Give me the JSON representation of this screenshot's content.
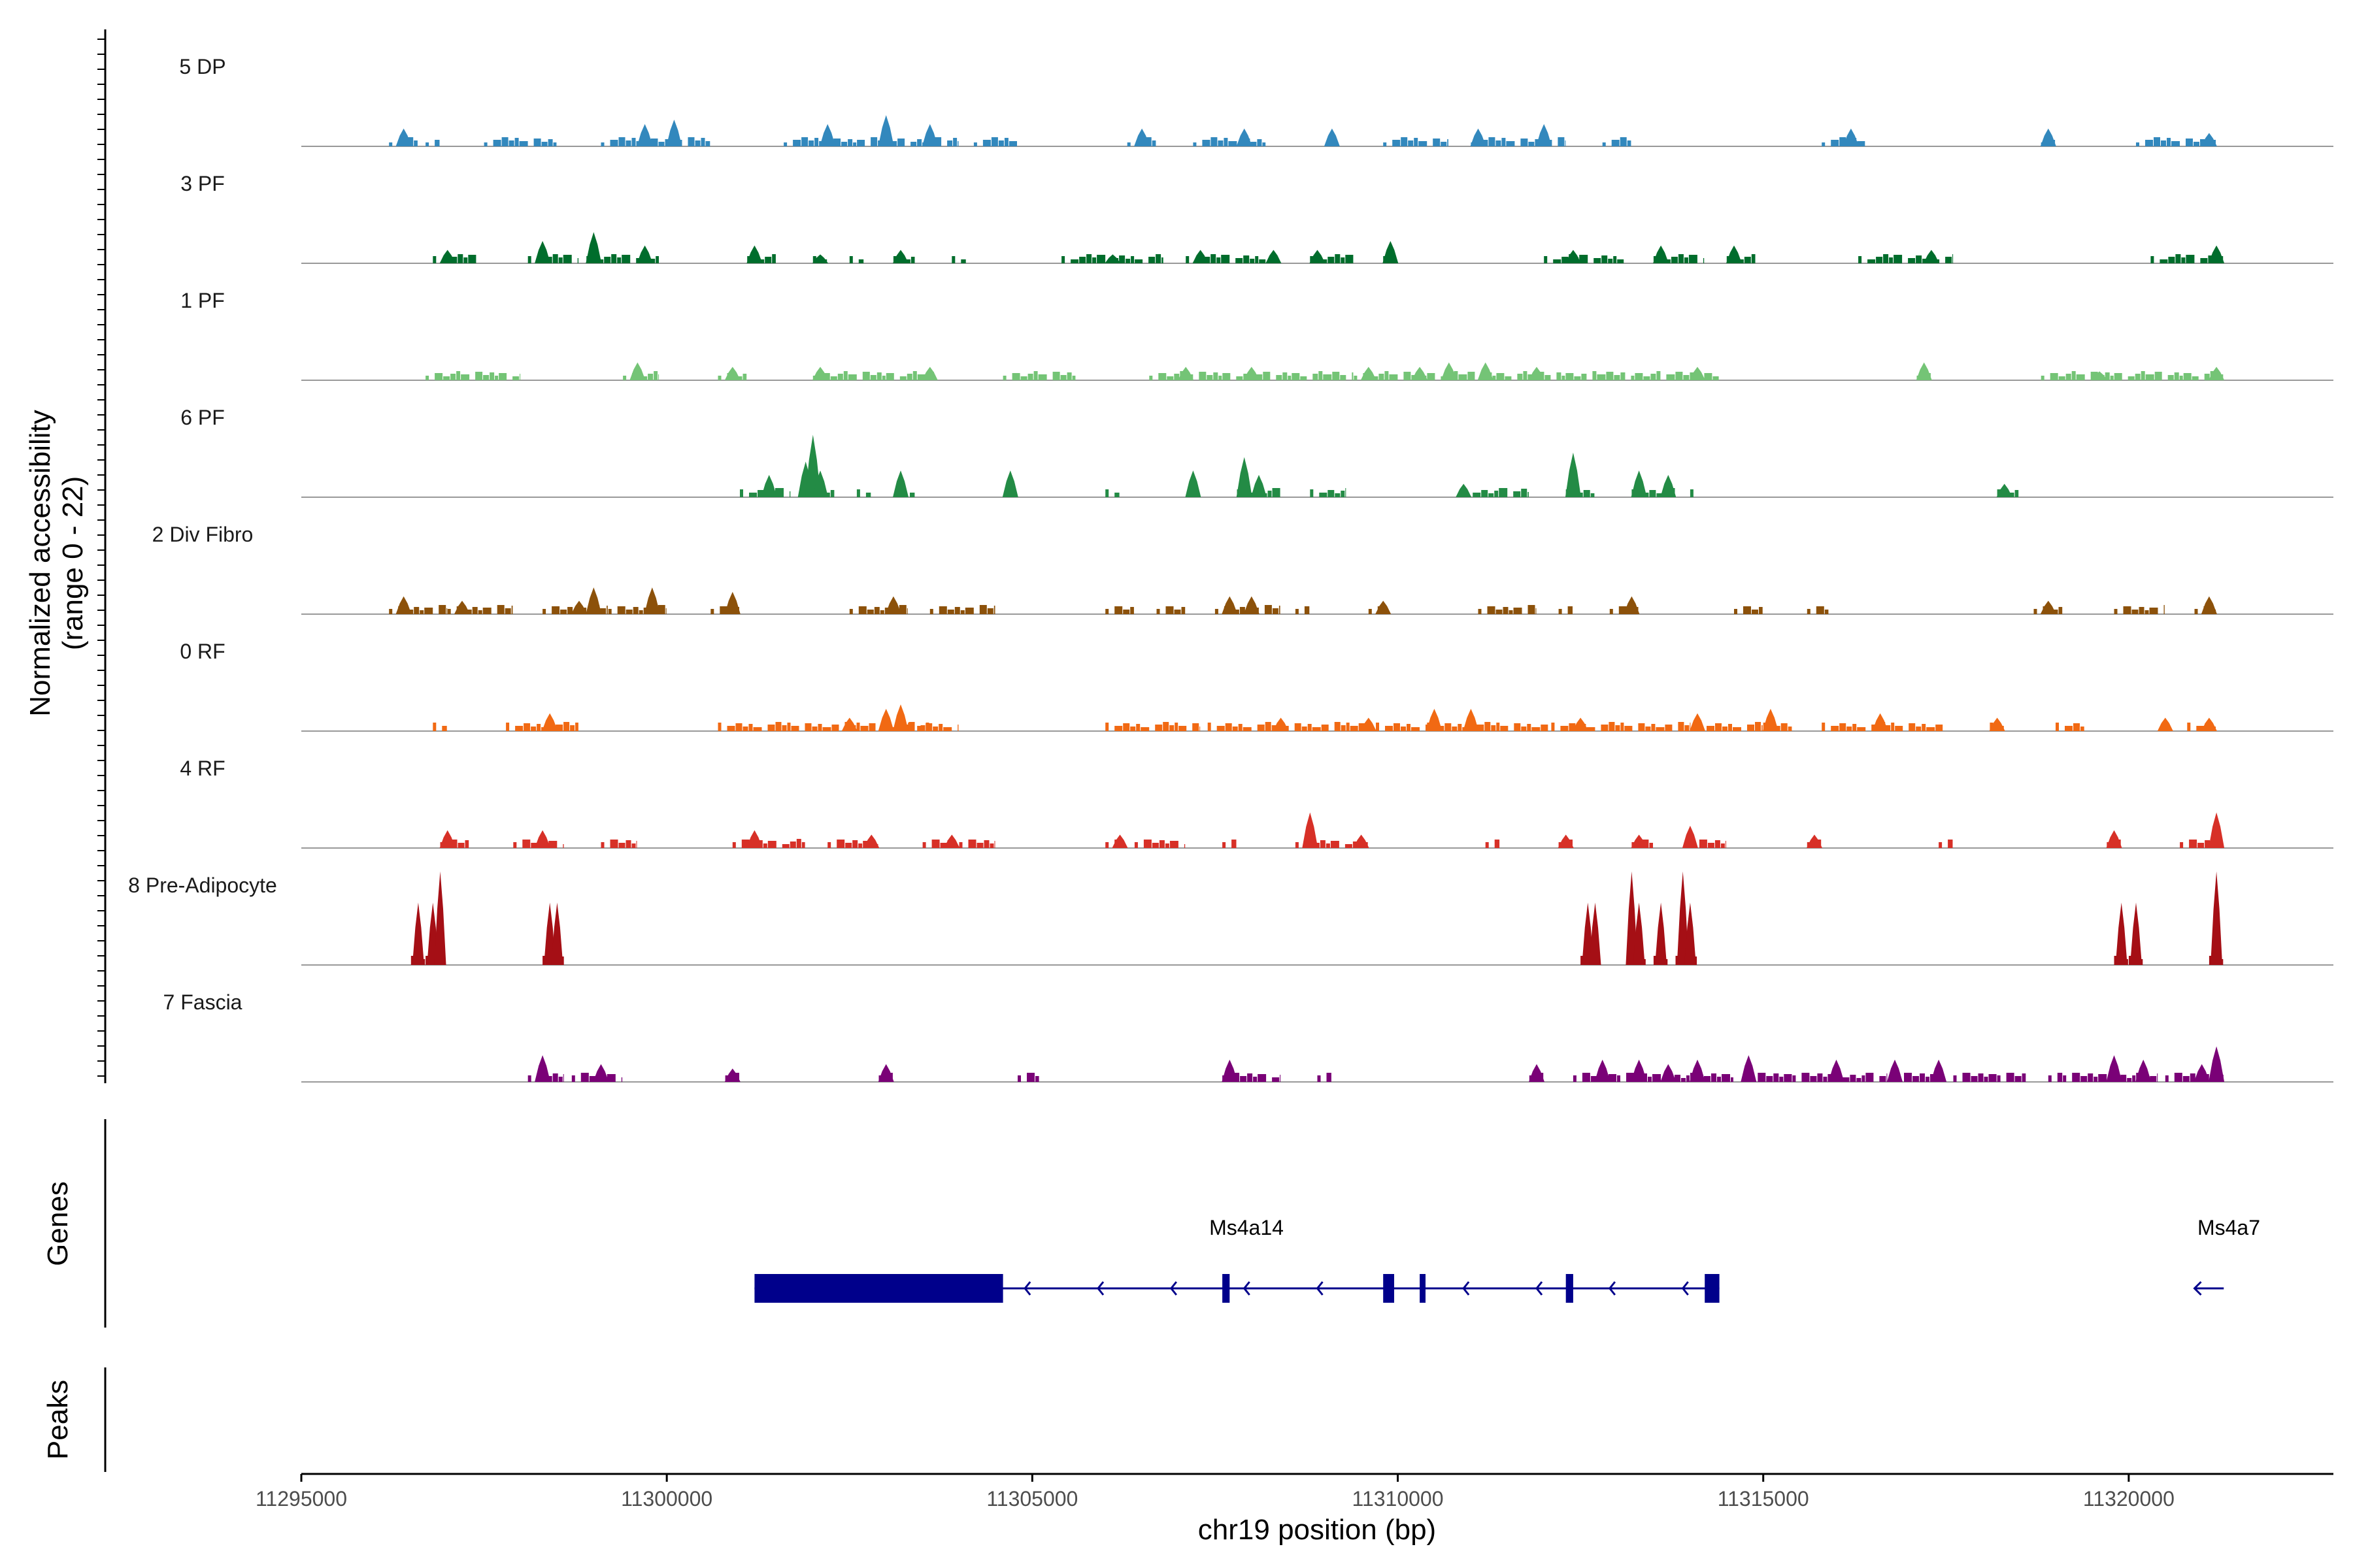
{
  "chart_data": {
    "type": "coverage-track",
    "y_axis_title_line1": "Normalized accessibility",
    "y_axis_title_line2": "(range 0 - 22)",
    "x_axis_title": "chr19 position (bp)",
    "x_range": [
      11295000,
      11322800
    ],
    "x_ticks": [
      11295000,
      11300000,
      11305000,
      11310000,
      11315000,
      11320000
    ],
    "genes_track_label": "Genes",
    "peaks_track_label": "Peaks",
    "tracks": [
      {
        "name": "5 DP",
        "color": "#3288BD",
        "ranges": [
          [
            11296200,
            11296600
          ],
          [
            11296700,
            11296900
          ],
          [
            11297500,
            11298500
          ],
          [
            11299100,
            11300600
          ],
          [
            11301600,
            11304000
          ],
          [
            11304200,
            11304800
          ],
          [
            11306300,
            11306700
          ],
          [
            11307200,
            11308200
          ],
          [
            11309100,
            11309200
          ],
          [
            11309800,
            11310700
          ],
          [
            11311000,
            11312300
          ],
          [
            11312800,
            11313200
          ],
          [
            11315800,
            11316400
          ],
          [
            11318800,
            11319000
          ],
          [
            11320100,
            11321200
          ]
        ],
        "peaks": [
          [
            11296400,
            4
          ],
          [
            11299700,
            5
          ],
          [
            11300100,
            6
          ],
          [
            11302200,
            5
          ],
          [
            11303000,
            7
          ],
          [
            11303600,
            5
          ],
          [
            11306500,
            4
          ],
          [
            11307900,
            4
          ],
          [
            11309100,
            4
          ],
          [
            11311100,
            4
          ],
          [
            11312000,
            5
          ],
          [
            11316200,
            4
          ],
          [
            11318900,
            4
          ],
          [
            11321100,
            3
          ]
        ]
      },
      {
        "name": "3 PF",
        "color": "#006D2C",
        "ranges": [
          [
            11296800,
            11297400
          ],
          [
            11298100,
            11298800
          ],
          [
            11298900,
            11299900
          ],
          [
            11301100,
            11301500
          ],
          [
            11302000,
            11302200
          ],
          [
            11302500,
            11302700
          ],
          [
            11303100,
            11303400
          ],
          [
            11303900,
            11304100
          ],
          [
            11305400,
            11306800
          ],
          [
            11307100,
            11308200
          ],
          [
            11308800,
            11309400
          ],
          [
            11309800,
            11310000
          ],
          [
            11312000,
            11313100
          ],
          [
            11313500,
            11314200
          ],
          [
            11314500,
            11314900
          ],
          [
            11316300,
            11317600
          ],
          [
            11320300,
            11321300
          ]
        ],
        "peaks": [
          [
            11297000,
            3
          ],
          [
            11298300,
            5
          ],
          [
            11299000,
            7
          ],
          [
            11299700,
            4
          ],
          [
            11301200,
            4
          ],
          [
            11302100,
            2
          ],
          [
            11303200,
            3
          ],
          [
            11306100,
            2
          ],
          [
            11307300,
            3
          ],
          [
            11308300,
            3
          ],
          [
            11308900,
            3
          ],
          [
            11309900,
            5
          ],
          [
            11312400,
            3
          ],
          [
            11313600,
            4
          ],
          [
            11314600,
            4
          ],
          [
            11317300,
            3
          ],
          [
            11321200,
            4
          ]
        ]
      },
      {
        "name": "1 PF",
        "color": "#74C476",
        "ranges": [
          [
            11296700,
            11298000
          ],
          [
            11299400,
            11299900
          ],
          [
            11300700,
            11301100
          ],
          [
            11302000,
            11303700
          ],
          [
            11304600,
            11305600
          ],
          [
            11306600,
            11309400
          ],
          [
            11309400,
            11314400
          ],
          [
            11317100,
            11317300
          ],
          [
            11318800,
            11321300
          ]
        ],
        "peaks": [
          [
            11299600,
            4
          ],
          [
            11300900,
            3
          ],
          [
            11302100,
            3
          ],
          [
            11303600,
            3
          ],
          [
            11307100,
            3
          ],
          [
            11308000,
            3
          ],
          [
            11309600,
            3
          ],
          [
            11310300,
            3
          ],
          [
            11310700,
            4
          ],
          [
            11311200,
            4
          ],
          [
            11311900,
            3
          ],
          [
            11314100,
            3
          ],
          [
            11317200,
            4
          ],
          [
            11319600,
            2
          ],
          [
            11321200,
            3
          ]
        ]
      },
      {
        "name": "6 PF",
        "color": "#238B45",
        "ranges": [
          [
            11301000,
            11301700
          ],
          [
            11302000,
            11302300
          ],
          [
            11302600,
            11302800
          ],
          [
            11303200,
            11303400
          ],
          [
            11304700,
            11304800
          ],
          [
            11306000,
            11306200
          ],
          [
            11307200,
            11307300
          ],
          [
            11307800,
            11308400
          ],
          [
            11308800,
            11309300
          ],
          [
            11310900,
            11311800
          ],
          [
            11312300,
            11312700
          ],
          [
            11313200,
            11313800
          ],
          [
            11314000,
            11314100
          ],
          [
            11318200,
            11318500
          ]
        ],
        "peaks": [
          [
            11301400,
            5
          ],
          [
            11301900,
            8
          ],
          [
            11302000,
            14
          ],
          [
            11302100,
            6
          ],
          [
            11303200,
            6
          ],
          [
            11304700,
            6
          ],
          [
            11307200,
            6
          ],
          [
            11307900,
            9
          ],
          [
            11308100,
            5
          ],
          [
            11310900,
            3
          ],
          [
            11312400,
            10
          ],
          [
            11313300,
            6
          ],
          [
            11313700,
            5
          ],
          [
            11318300,
            3
          ]
        ]
      },
      {
        "name": "2 Div Fibro",
        "color": "#8C510A",
        "ranges": [
          [
            11296200,
            11297000
          ],
          [
            11297000,
            11297900
          ],
          [
            11298300,
            11299200
          ],
          [
            11299200,
            11300000
          ],
          [
            11300600,
            11301000
          ],
          [
            11302500,
            11303300
          ],
          [
            11303600,
            11304500
          ],
          [
            11306000,
            11306400
          ],
          [
            11306700,
            11307100
          ],
          [
            11307500,
            11308400
          ],
          [
            11308600,
            11308800
          ],
          [
            11309600,
            11309800
          ],
          [
            11311100,
            11311900
          ],
          [
            11312200,
            11312400
          ],
          [
            11312900,
            11313300
          ],
          [
            11314600,
            11315000
          ],
          [
            11315600,
            11315900
          ],
          [
            11318700,
            11319100
          ],
          [
            11319800,
            11320500
          ],
          [
            11320900,
            11321200
          ]
        ],
        "peaks": [
          [
            11296400,
            4
          ],
          [
            11297200,
            3
          ],
          [
            11298800,
            3
          ],
          [
            11299000,
            6
          ],
          [
            11299800,
            6
          ],
          [
            11300900,
            5
          ],
          [
            11303100,
            4
          ],
          [
            11307700,
            4
          ],
          [
            11308000,
            4
          ],
          [
            11309800,
            3
          ],
          [
            11313200,
            4
          ],
          [
            11318900,
            3
          ],
          [
            11321100,
            4
          ]
        ]
      },
      {
        "name": "0 RF",
        "color": "#F16913",
        "ranges": [
          [
            11296800,
            11297000
          ],
          [
            11297800,
            11298800
          ],
          [
            11300700,
            11303600
          ],
          [
            11303300,
            11304000
          ],
          [
            11306000,
            11307300
          ],
          [
            11307400,
            11309600
          ],
          [
            11309700,
            11310500
          ],
          [
            11310400,
            11312100
          ],
          [
            11312100,
            11314000
          ],
          [
            11314100,
            11315000
          ],
          [
            11315000,
            11315400
          ],
          [
            11315800,
            11317500
          ],
          [
            11318100,
            11318300
          ],
          [
            11319000,
            11319400
          ],
          [
            11320800,
            11321200
          ]
        ],
        "peaks": [
          [
            11298400,
            4
          ],
          [
            11302500,
            3
          ],
          [
            11303000,
            5
          ],
          [
            11303200,
            6
          ],
          [
            11308400,
            3
          ],
          [
            11309600,
            3
          ],
          [
            11310500,
            5
          ],
          [
            11311000,
            5
          ],
          [
            11312500,
            3
          ],
          [
            11314100,
            4
          ],
          [
            11315100,
            5
          ],
          [
            11316600,
            4
          ],
          [
            11318200,
            3
          ],
          [
            11320500,
            3
          ],
          [
            11321100,
            3
          ]
        ]
      },
      {
        "name": "4 RF",
        "color": "#D73027",
        "ranges": [
          [
            11296900,
            11297300
          ],
          [
            11297900,
            11298600
          ],
          [
            11299100,
            11299600
          ],
          [
            11300900,
            11301900
          ],
          [
            11302200,
            11302900
          ],
          [
            11303500,
            11303900
          ],
          [
            11304000,
            11304500
          ],
          [
            11306000,
            11306200
          ],
          [
            11306400,
            11307100
          ],
          [
            11307600,
            11307800
          ],
          [
            11308600,
            11309600
          ],
          [
            11311200,
            11311400
          ],
          [
            11312200,
            11312400
          ],
          [
            11313200,
            11313500
          ],
          [
            11314000,
            11314500
          ],
          [
            11315600,
            11315800
          ],
          [
            11317400,
            11317600
          ],
          [
            11319700,
            11319900
          ],
          [
            11320700,
            11321200
          ]
        ],
        "peaks": [
          [
            11297000,
            4
          ],
          [
            11298300,
            4
          ],
          [
            11301200,
            4
          ],
          [
            11302800,
            3
          ],
          [
            11303900,
            3
          ],
          [
            11306200,
            3
          ],
          [
            11308800,
            8
          ],
          [
            11309500,
            3
          ],
          [
            11312300,
            3
          ],
          [
            11313300,
            3
          ],
          [
            11314000,
            5
          ],
          [
            11315700,
            3
          ],
          [
            11319800,
            4
          ],
          [
            11321200,
            8
          ]
        ]
      },
      {
        "name": "8 Pre-Adipocyte",
        "color": "#A50F15",
        "ranges": [
          [
            11296500,
            11296700
          ],
          [
            11296700,
            11296900
          ],
          [
            11298300,
            11298600
          ],
          [
            11312500,
            11312700
          ],
          [
            11313200,
            11313400
          ],
          [
            11313500,
            11313700
          ],
          [
            11313800,
            11314100
          ],
          [
            11319800,
            11320000
          ],
          [
            11320000,
            11320200
          ],
          [
            11321100,
            11321300
          ]
        ],
        "peaks": [
          [
            11296600,
            14
          ],
          [
            11296800,
            14
          ],
          [
            11296900,
            21
          ],
          [
            11298400,
            14
          ],
          [
            11298500,
            14
          ],
          [
            11312600,
            14
          ],
          [
            11312700,
            14
          ],
          [
            11313200,
            21
          ],
          [
            11313300,
            14
          ],
          [
            11313600,
            14
          ],
          [
            11313900,
            21
          ],
          [
            11314000,
            14
          ],
          [
            11319900,
            14
          ],
          [
            11320100,
            14
          ],
          [
            11321200,
            21
          ]
        ]
      },
      {
        "name": "7 Fascia",
        "color": "#7A0177",
        "ranges": [
          [
            11298100,
            11298600
          ],
          [
            11298700,
            11299400
          ],
          [
            11300800,
            11301000
          ],
          [
            11302900,
            11303100
          ],
          [
            11304800,
            11305100
          ],
          [
            11307600,
            11308400
          ],
          [
            11308900,
            11309100
          ],
          [
            11311800,
            11312000
          ],
          [
            11312400,
            11313000
          ],
          [
            11313000,
            11314600
          ],
          [
            11314800,
            11315400
          ],
          [
            11315400,
            11316700
          ],
          [
            11316800,
            11317400
          ],
          [
            11317600,
            11318200
          ],
          [
            11318200,
            11318600
          ],
          [
            11318900,
            11319100
          ],
          [
            11319100,
            11320400
          ],
          [
            11320500,
            11321300
          ]
        ],
        "peaks": [
          [
            11298300,
            6
          ],
          [
            11299100,
            4
          ],
          [
            11300900,
            3
          ],
          [
            11303000,
            4
          ],
          [
            11307700,
            5
          ],
          [
            11311900,
            4
          ],
          [
            11312800,
            5
          ],
          [
            11313300,
            5
          ],
          [
            11313700,
            4
          ],
          [
            11314100,
            5
          ],
          [
            11314800,
            6
          ],
          [
            11316000,
            5
          ],
          [
            11316800,
            5
          ],
          [
            11317400,
            5
          ],
          [
            11319800,
            6
          ],
          [
            11320200,
            5
          ],
          [
            11321200,
            8
          ],
          [
            11321000,
            4
          ]
        ]
      }
    ],
    "genes": [
      {
        "name": "Ms4a14",
        "strand": "-",
        "start": 11301200,
        "end": 11314400,
        "exons": [
          [
            11301200,
            11304600
          ],
          [
            11307600,
            11307700
          ],
          [
            11309800,
            11309950
          ],
          [
            11310300,
            11310380
          ],
          [
            11312300,
            11312400
          ],
          [
            11314200,
            11314400
          ]
        ]
      },
      {
        "name": "Ms4a7",
        "strand": "-",
        "start": 11320900,
        "end": 11321300,
        "exons": []
      }
    ],
    "peaks": []
  }
}
